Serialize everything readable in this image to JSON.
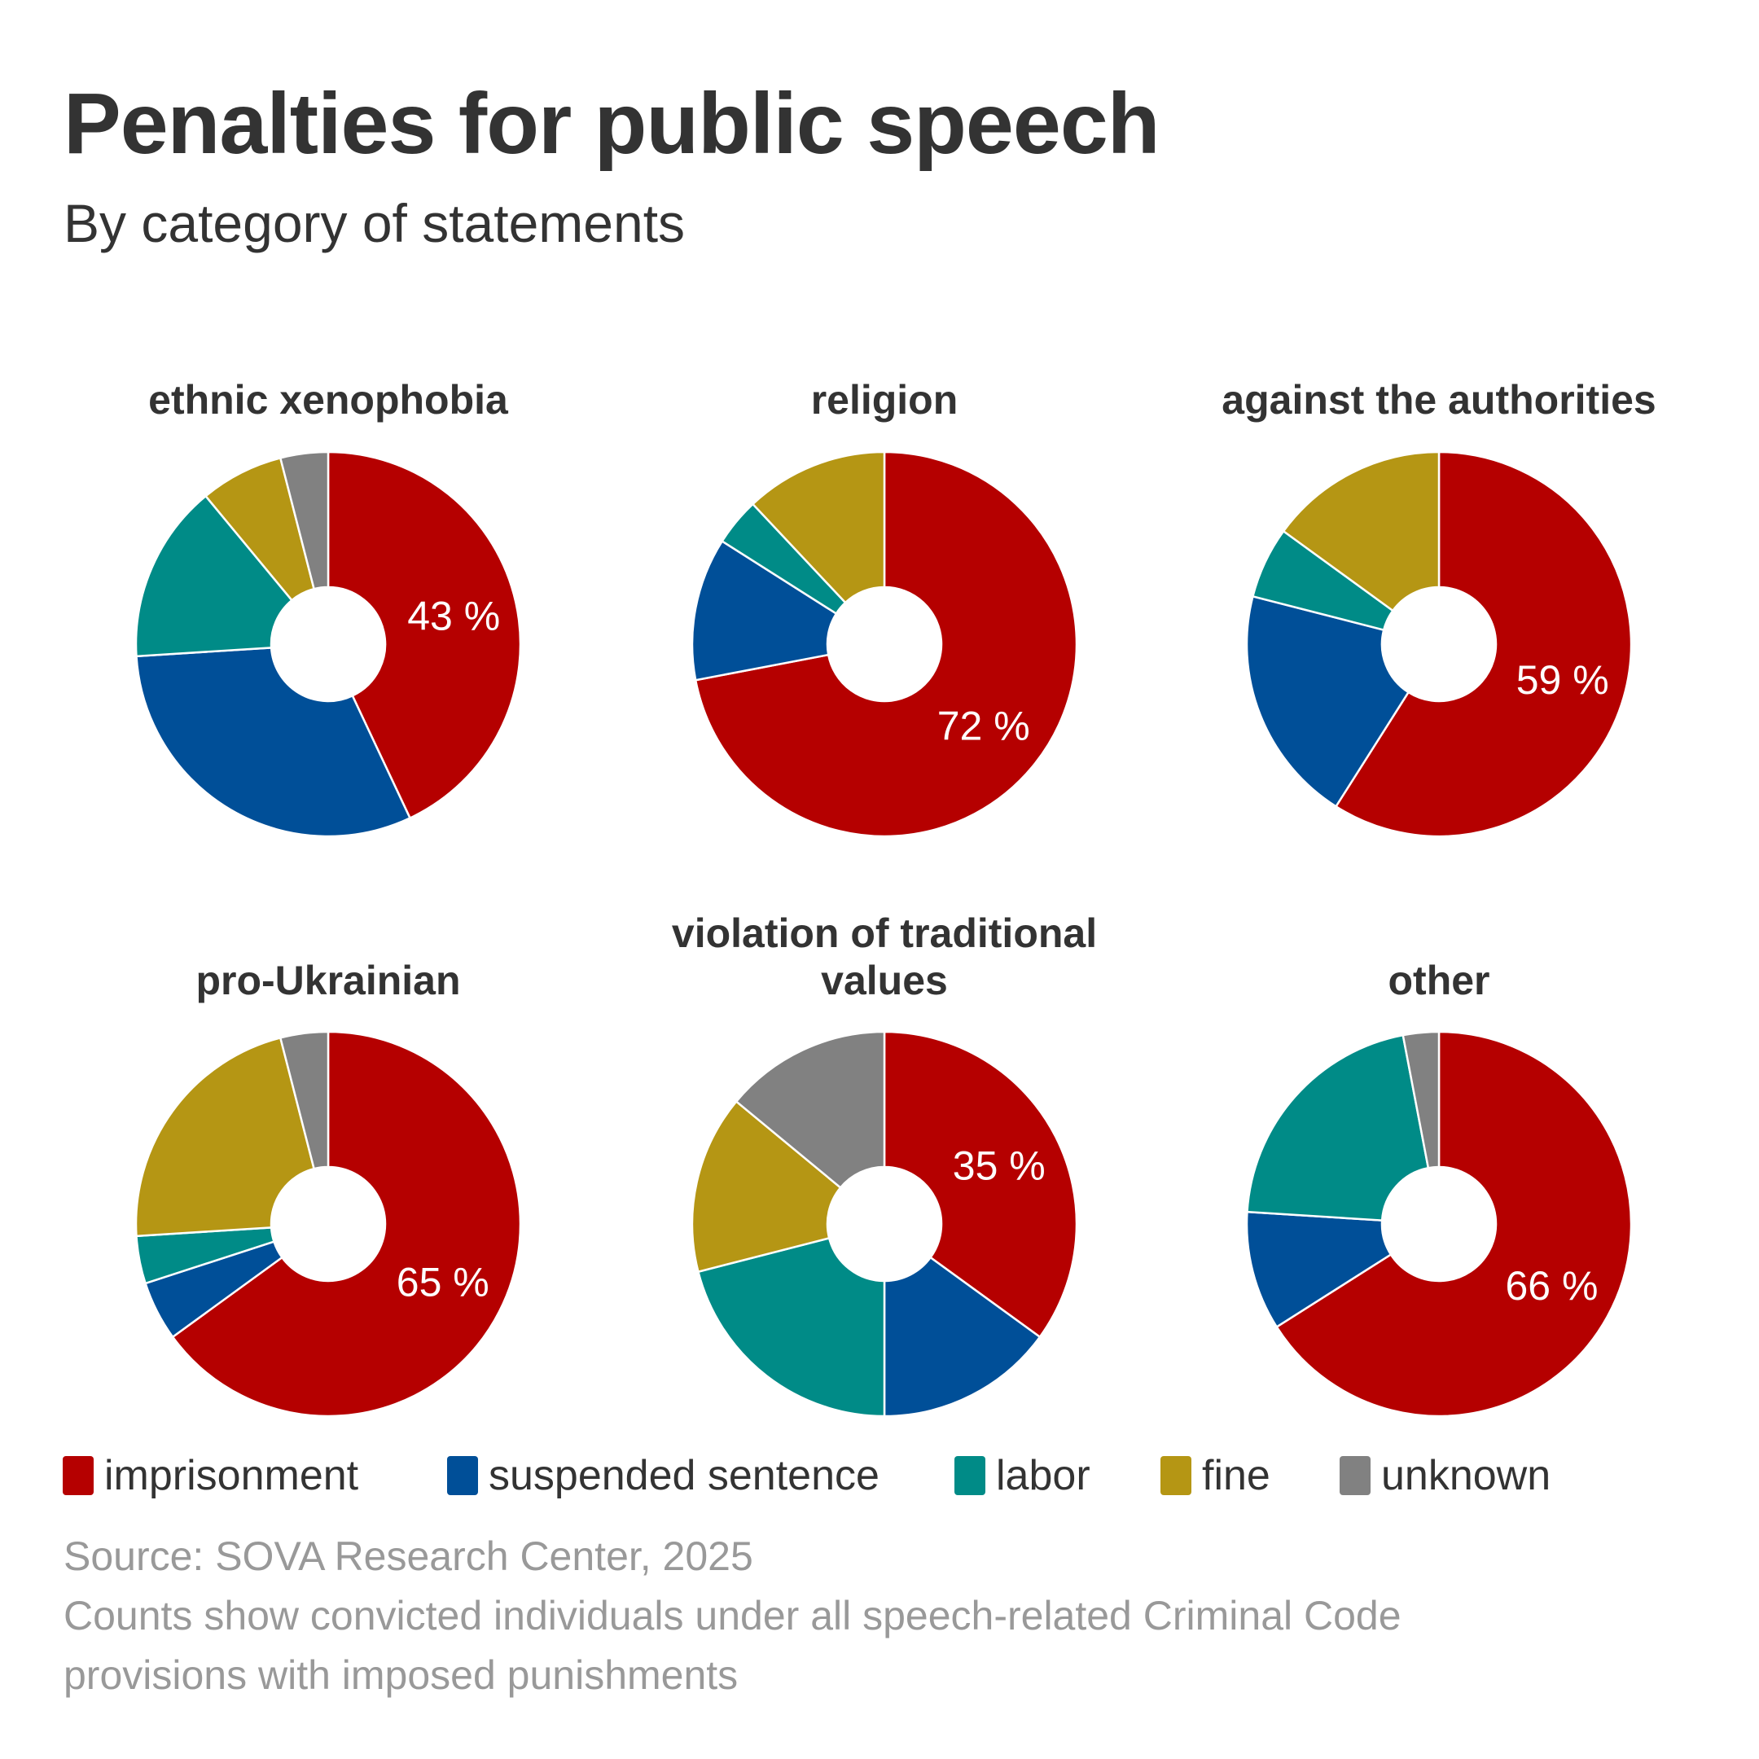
{
  "header": {
    "title": "Penalties for public speech",
    "subtitle": "By category of statements"
  },
  "colors": {
    "imprisonment": "#b50000",
    "suspended sentence": "#004f98",
    "labor": "#008b87",
    "fine": "#b59614",
    "unknown": "#818181"
  },
  "chart_data": {
    "type": "pie",
    "variant": "donut-small-multiples",
    "title": "Penalties for public speech",
    "subtitle": "By category of statements",
    "categories": [
      "imprisonment",
      "suspended sentence",
      "labor",
      "fine",
      "unknown"
    ],
    "unit": "%",
    "legend_position": "bottom",
    "panels": [
      {
        "name": "ethnic xenophobia",
        "title_lines": [
          "ethnic xenophobia"
        ],
        "values": [
          43,
          31,
          15,
          7,
          4
        ],
        "label": "43 %"
      },
      {
        "name": "religion",
        "title_lines": [
          "religion"
        ],
        "values": [
          72,
          12,
          4,
          12,
          0
        ],
        "label": "72 %"
      },
      {
        "name": "against the authorities",
        "title_lines": [
          "against the authorities"
        ],
        "values": [
          59,
          20,
          6,
          15,
          0
        ],
        "label": "59 %"
      },
      {
        "name": "pro-Ukrainian",
        "title_lines": [
          "pro-Ukrainian"
        ],
        "values": [
          65,
          5,
          4,
          22,
          4
        ],
        "label": "65 %"
      },
      {
        "name": "violation of traditional values",
        "title_lines": [
          "violation of traditional",
          "values"
        ],
        "values": [
          35,
          15,
          21,
          15,
          14
        ],
        "label": "35 %"
      },
      {
        "name": "other",
        "title_lines": [
          "other"
        ],
        "values": [
          66,
          10,
          21,
          0,
          3
        ],
        "label": "66 %"
      }
    ]
  },
  "legend": [
    {
      "label": "imprisonment",
      "color": "#b50000"
    },
    {
      "label": "suspended sentence",
      "color": "#004f98"
    },
    {
      "label": "labor",
      "color": "#008b87"
    },
    {
      "label": "fine",
      "color": "#b59614"
    },
    {
      "label": "unknown",
      "color": "#818181"
    }
  ],
  "notes": {
    "source": "Source: SOVA Research Center, 2025",
    "line1": "Counts show convicted individuals under all speech-related Criminal Code",
    "line2": "provisions with imposed punishments"
  }
}
